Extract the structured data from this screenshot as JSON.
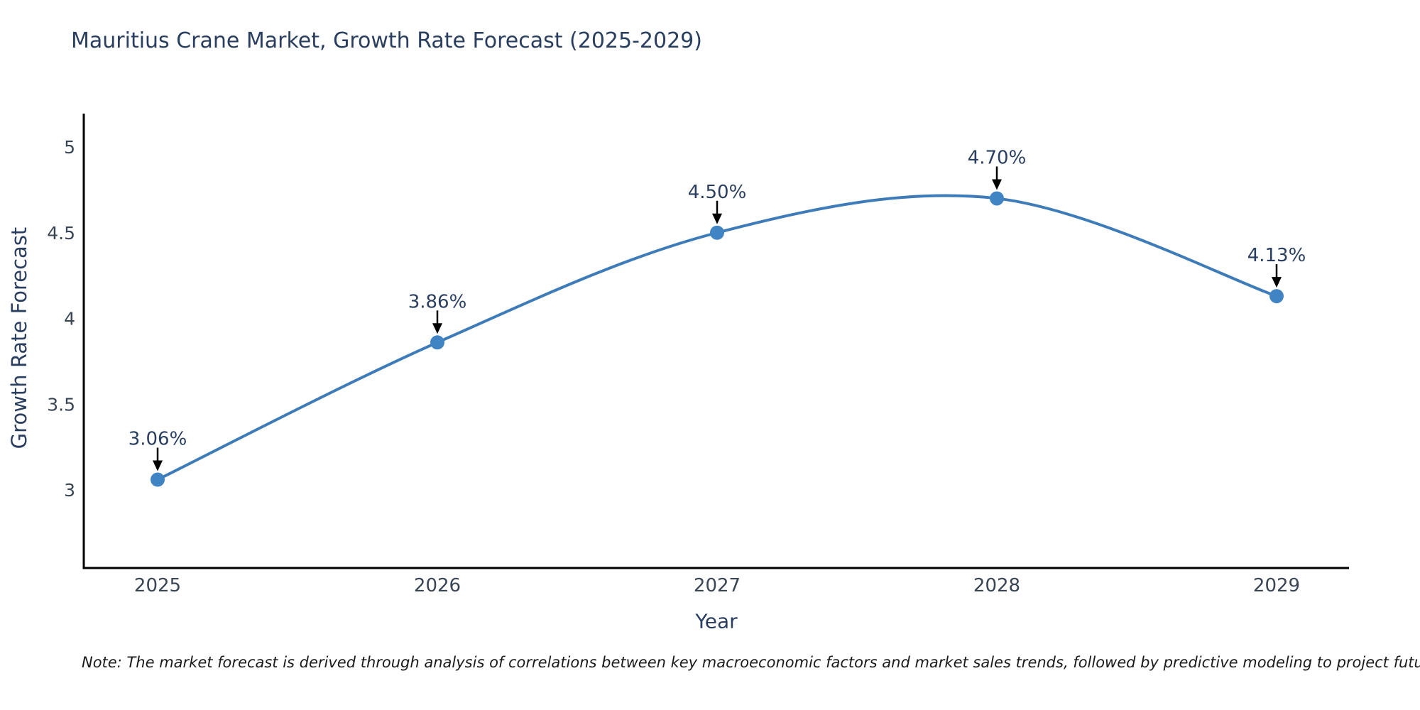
{
  "chart_data": {
    "type": "line",
    "title": "Mauritius Crane Market, Growth Rate Forecast (2025-2029)",
    "xlabel": "Year",
    "ylabel": "Growth Rate Forecast",
    "x": [
      "2025",
      "2026",
      "2027",
      "2028",
      "2029"
    ],
    "values": [
      3.06,
      3.86,
      4.5,
      4.7,
      4.13
    ],
    "point_labels": [
      "3.06%",
      "3.86%",
      "4.50%",
      "4.70%",
      "4.13%"
    ],
    "ytick_labels": [
      "3",
      "3.5",
      "4",
      "4.5",
      "5"
    ],
    "yticks": [
      3,
      3.5,
      4,
      4.5,
      5
    ],
    "ylim": [
      2.54,
      5.19
    ],
    "grid": false,
    "legend": "none",
    "line_color": "#3e7cb9",
    "marker_color": "#4184c4",
    "arrow_color": "#000000"
  },
  "note": "Note: The market forecast is derived through analysis of correlations between key macroeconomic factors and market sales trends, followed by predictive modeling to project future sales",
  "colors": {
    "title_text": "#2a3f5f",
    "tick_text": "#3a4554",
    "annotation_text": "#2a3f5f",
    "axis_line": "#000000",
    "background": "#ffffff"
  }
}
